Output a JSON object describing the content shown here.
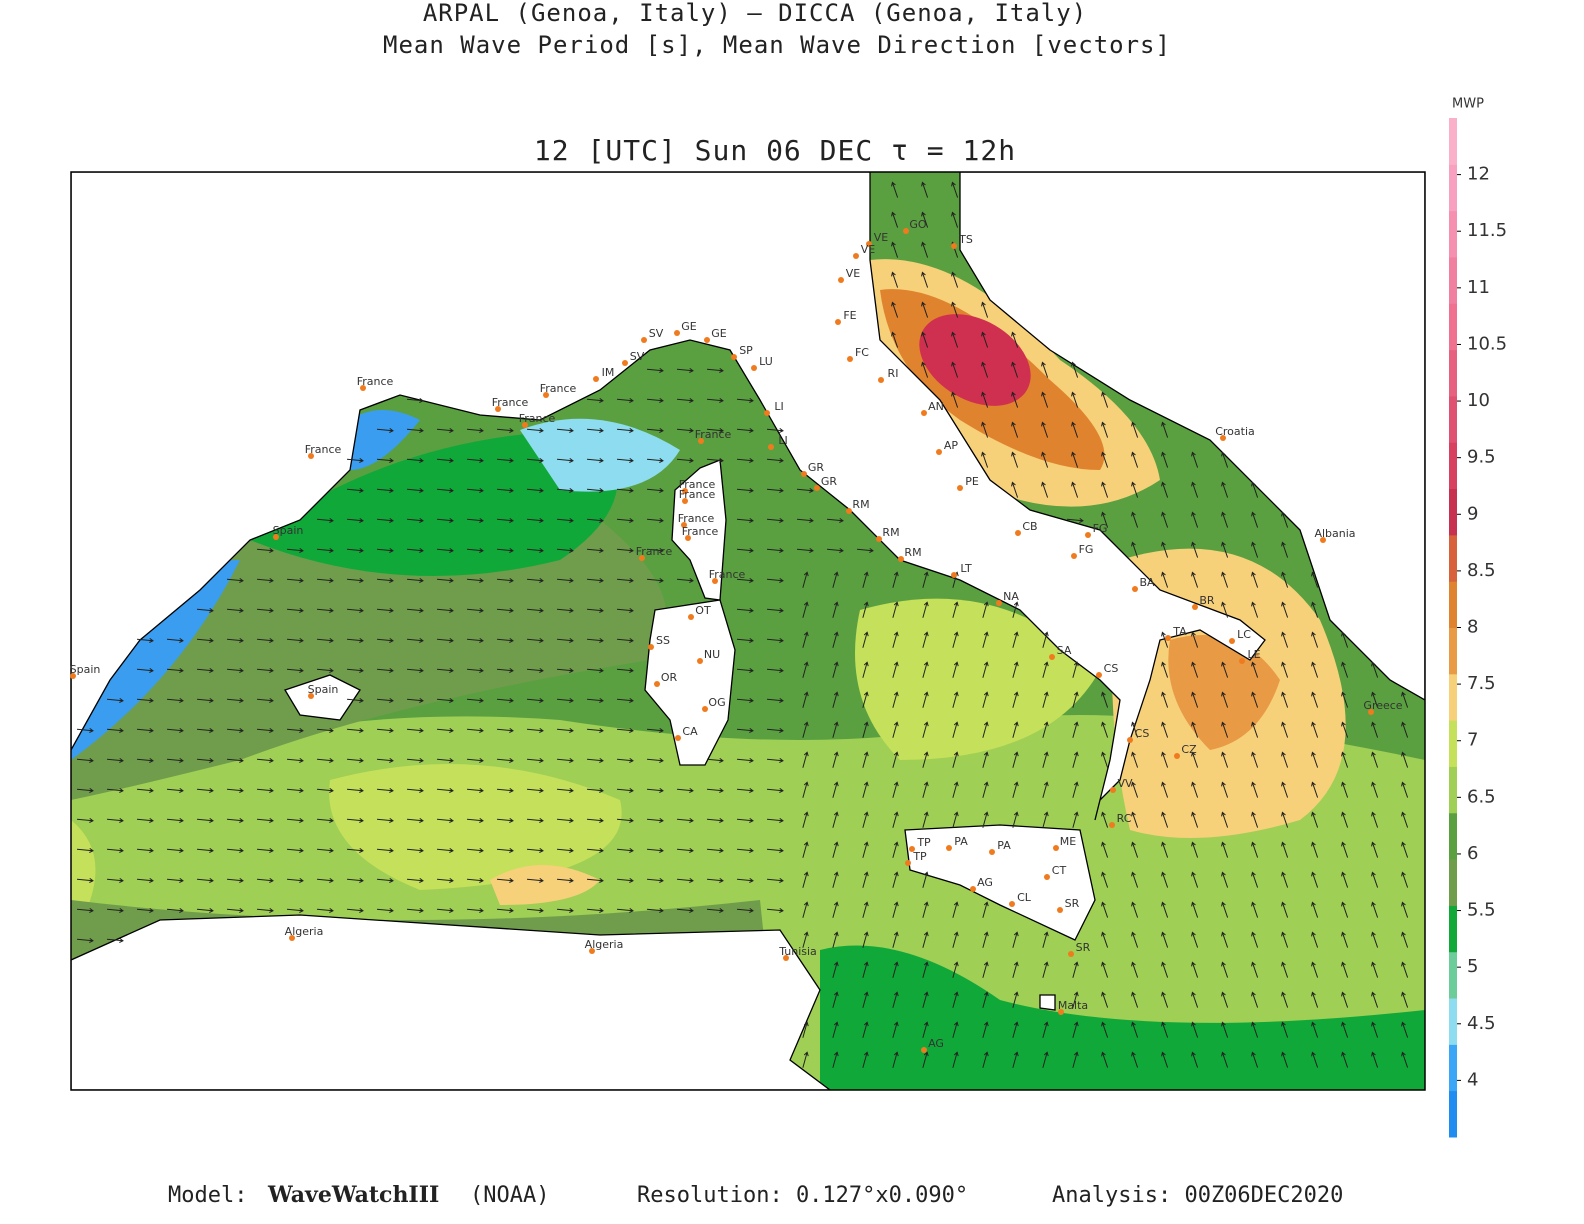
{
  "header": {
    "line1": "ARPAL (Genoa, Italy)  —  DICCA (Genoa, Italy)",
    "line2": "Mean Wave Period [s], Mean Wave Direction [vectors]",
    "time": "12 [UTC] Sun 06 DEC  τ = 12h"
  },
  "colorbar": {
    "label": "MWP",
    "range": [
      3.5,
      12.5
    ],
    "ticks": [
      4,
      4.5,
      5,
      5.5,
      6,
      6.5,
      7,
      7.5,
      8,
      8.5,
      9,
      9.5,
      10,
      10.5,
      11,
      11.5,
      12
    ]
  },
  "places": [
    "France",
    "France",
    "France",
    "France",
    "France",
    "Spain",
    "Spain",
    "Spain",
    "SV",
    "GE",
    "GE",
    "SP",
    "LU",
    "SV",
    "IM",
    "LI",
    "LI",
    "France",
    "France",
    "France",
    "France",
    "France",
    "France",
    "France",
    "GR",
    "GR",
    "RM",
    "RM",
    "RM",
    "LT",
    "NA",
    "SA",
    "CS",
    "CS",
    "OT",
    "SS",
    "NU",
    "OR",
    "OG",
    "CA",
    "VE",
    "VE",
    "VE",
    "GO",
    "TS",
    "FE",
    "FC",
    "RI",
    "AN",
    "AP",
    "PE",
    "CB",
    "FG",
    "FG",
    "BA",
    "BR",
    "LC",
    "LE",
    "TA",
    "CZ",
    "VV",
    "RC",
    "ME",
    "CT",
    "SR",
    "SR",
    "TP",
    "TP",
    "PA",
    "PA",
    "AG",
    "CL",
    "Croatia",
    "Albania",
    "Greece",
    "Algeria",
    "Algeria",
    "Tunisia",
    "Malta",
    "AG"
  ],
  "footer": {
    "model_label": "Model:",
    "model": "WaveWatchIII",
    "model_source": "(NOAA)",
    "resolution": "Resolution: 0.127°x0.090°",
    "analysis": "Analysis: 00Z06DEC2020"
  }
}
